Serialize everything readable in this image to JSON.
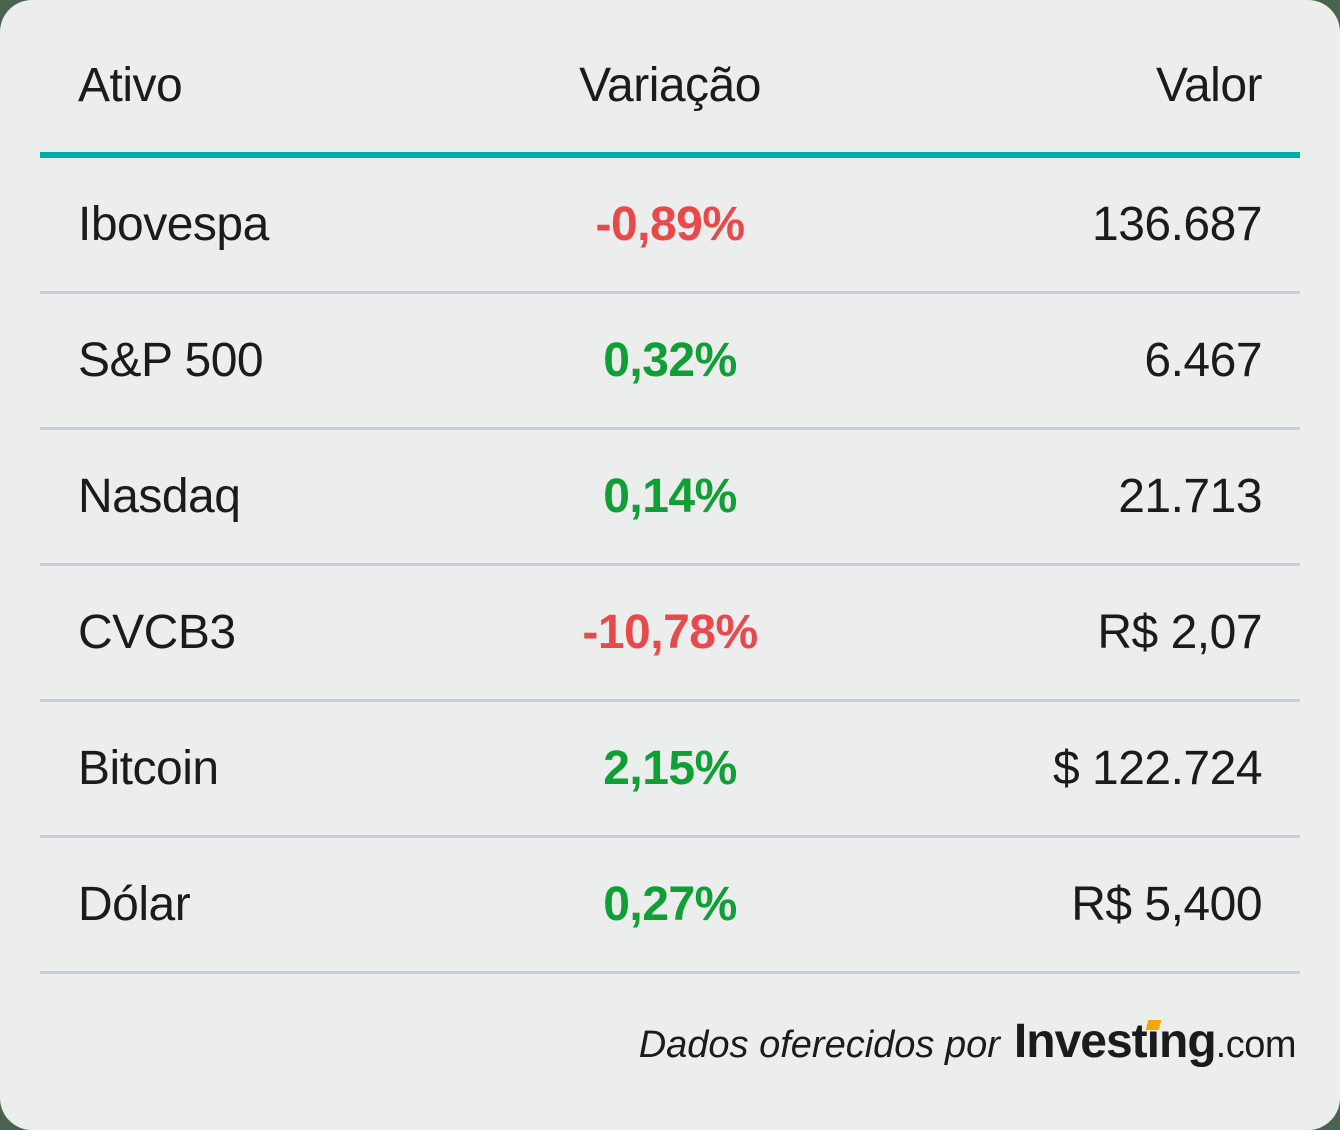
{
  "colors": {
    "page_bg": "#4A634F",
    "card_bg": "#ECEDED",
    "text": "#1B1B1D",
    "positive": "#109F35",
    "negative": "#E8494B",
    "header_rule": "#00ACA8",
    "row_rule": "#C6CEDD",
    "logo_accent": "#F7A600"
  },
  "chart_data": {
    "type": "table",
    "columns": [
      "Ativo",
      "Variação",
      "Valor"
    ],
    "rows": [
      [
        "Ibovespa",
        "-0,89%",
        "136.687"
      ],
      [
        "S&P 500",
        "0,32%",
        "6.467"
      ],
      [
        "Nasdaq",
        "0,14%",
        "21.713"
      ],
      [
        "CVCB3",
        "-10,78%",
        "R$ 2,07"
      ],
      [
        "Bitcoin",
        "2,15%",
        "$ 122.724"
      ],
      [
        "Dólar",
        "0,27%",
        "R$ 5,400"
      ]
    ],
    "variacao_numeric_percent": [
      -0.89,
      0.32,
      0.14,
      -10.78,
      2.15,
      0.27
    ],
    "attribution": "Dados oferecidos por Investing.com"
  },
  "footer": {
    "attribution": "Dados oferecidos por",
    "brand": {
      "prefix": "Invest",
      "accent_letter": "ı",
      "suffix": "ng",
      "domain": ".com"
    }
  }
}
